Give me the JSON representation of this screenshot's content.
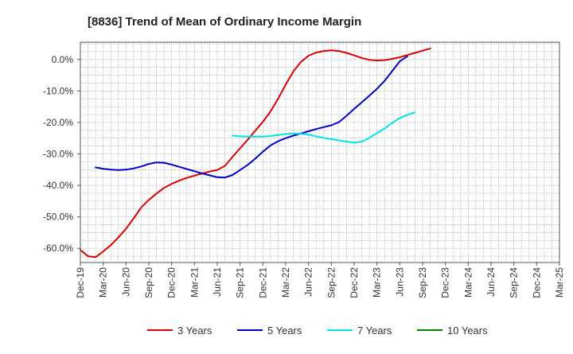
{
  "chart_data": {
    "type": "line",
    "title": "[8836]  Trend of Mean of Ordinary Income Margin",
    "xlabel": "",
    "ylabel": "",
    "x_categories": [
      "Dec-19",
      "Mar-20",
      "Jun-20",
      "Sep-20",
      "Dec-20",
      "Mar-21",
      "Jun-21",
      "Sep-21",
      "Dec-21",
      "Mar-22",
      "Jun-22",
      "Sep-22",
      "Dec-22",
      "Mar-23",
      "Jun-23",
      "Sep-23",
      "Dec-23",
      "Mar-24",
      "Jun-24",
      "Sep-24",
      "Dec-24",
      "Mar-25"
    ],
    "y_ticks": [
      0,
      -10,
      -20,
      -30,
      -40,
      -50,
      -60
    ],
    "y_tick_labels": [
      "0.0%",
      "-10.0%",
      "-20.0%",
      "-30.0%",
      "-40.0%",
      "-50.0%",
      "-60.0%"
    ],
    "ylim": [
      -64.5,
      5.5
    ],
    "grid": true,
    "legend_position": "bottom",
    "series": [
      {
        "name": "3 Years",
        "color": "#dd0000",
        "start_index": 0,
        "values": [
          -60.5,
          -62.5,
          -62.8,
          -61.0,
          -59.0,
          -56.5,
          -53.8,
          -50.5,
          -47.0,
          -44.6,
          -42.6,
          -40.8,
          -39.5,
          -38.5,
          -37.6,
          -36.9,
          -36.2,
          -35.6,
          -35.1,
          -33.8,
          -31.0,
          -28.2,
          -25.5,
          -22.6,
          -19.8,
          -16.5,
          -12.5,
          -8.0,
          -3.8,
          -0.8,
          1.2,
          2.2,
          2.7,
          2.9,
          2.7,
          2.1,
          1.3,
          0.5,
          -0.1,
          -0.3,
          -0.2,
          0.2,
          0.7,
          1.4,
          2.1,
          2.8,
          3.5
        ]
      },
      {
        "name": "5 Years",
        "color": "#0000cc",
        "start_index": 2,
        "values": [
          -34.3,
          -34.7,
          -35.0,
          -35.1,
          -35.0,
          -34.6,
          -34.0,
          -33.2,
          -32.7,
          -32.8,
          -33.4,
          -34.1,
          -34.8,
          -35.5,
          -36.2,
          -36.8,
          -37.4,
          -37.5,
          -36.7,
          -35.1,
          -33.5,
          -31.5,
          -29.3,
          -27.3,
          -26.0,
          -25.0,
          -24.2,
          -23.5,
          -22.8,
          -22.1,
          -21.5,
          -20.9,
          -19.9,
          -17.9,
          -15.7,
          -13.6,
          -11.5,
          -9.3,
          -6.8,
          -3.7,
          -0.6,
          1.0
        ]
      },
      {
        "name": "7 Years",
        "color": "#00e5e5",
        "start_index": 20,
        "values": [
          -24.2,
          -24.4,
          -24.5,
          -24.5,
          -24.5,
          -24.3,
          -24.0,
          -23.7,
          -23.5,
          -23.6,
          -23.9,
          -24.4,
          -24.9,
          -25.3,
          -25.7,
          -26.1,
          -26.4,
          -26.1,
          -24.9,
          -23.4,
          -21.9,
          -20.2,
          -18.6,
          -17.6,
          -16.8
        ]
      },
      {
        "name": "10 Years",
        "color": "#008000",
        "start_index": 0,
        "values": []
      }
    ]
  }
}
